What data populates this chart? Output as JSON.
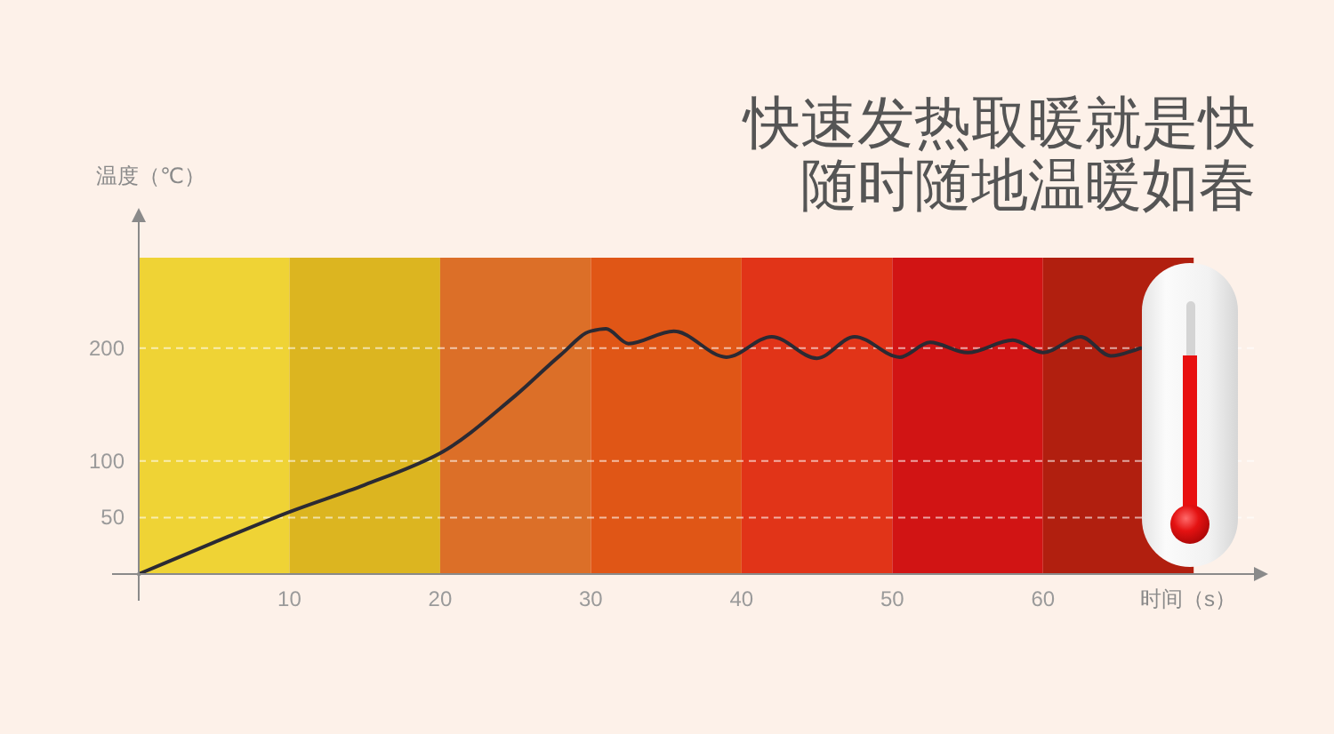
{
  "chart_data": {
    "type": "line",
    "title": "快速发热取暖就是快",
    "subtitle": "随时随地温暖如春",
    "xlabel": "时间（s）",
    "ylabel": "温度（℃）",
    "x": [
      0,
      5,
      10,
      15,
      20,
      25,
      28,
      30,
      31,
      32.5,
      35.5,
      39,
      42,
      45,
      47.5,
      50.5,
      52.5,
      55,
      58,
      60,
      62.5,
      64.5,
      66.5
    ],
    "series": [
      {
        "color": "#2b2a33",
        "values": [
          0,
          28,
          55,
          79,
          107,
          158,
          194,
          215,
          217,
          204,
          215,
          192,
          210,
          191,
          210,
          192,
          205,
          196,
          207,
          196,
          210,
          193,
          200
        ]
      }
    ],
    "xlim": [
      0,
      74
    ],
    "xticks": [
      10,
      20,
      30,
      40,
      50,
      60
    ],
    "ylim": [
      0,
      280
    ],
    "yticks": [
      50,
      100,
      200
    ],
    "grid": "y",
    "bands": [
      {
        "axis": "x",
        "from": 0,
        "to": 10,
        "color": "#efd335"
      },
      {
        "axis": "x",
        "from": 10,
        "to": 20,
        "color": "#dcb520"
      },
      {
        "axis": "x",
        "from": 20,
        "to": 30,
        "color": "#dc6f28"
      },
      {
        "axis": "x",
        "from": 30,
        "to": 40,
        "color": "#e05616"
      },
      {
        "axis": "x",
        "from": 40,
        "to": 50,
        "color": "#e13418"
      },
      {
        "axis": "x",
        "from": 50,
        "to": 60,
        "color": "#d11414"
      },
      {
        "axis": "x",
        "from": 60,
        "to": 70,
        "color": "#b11f0f"
      }
    ]
  }
}
